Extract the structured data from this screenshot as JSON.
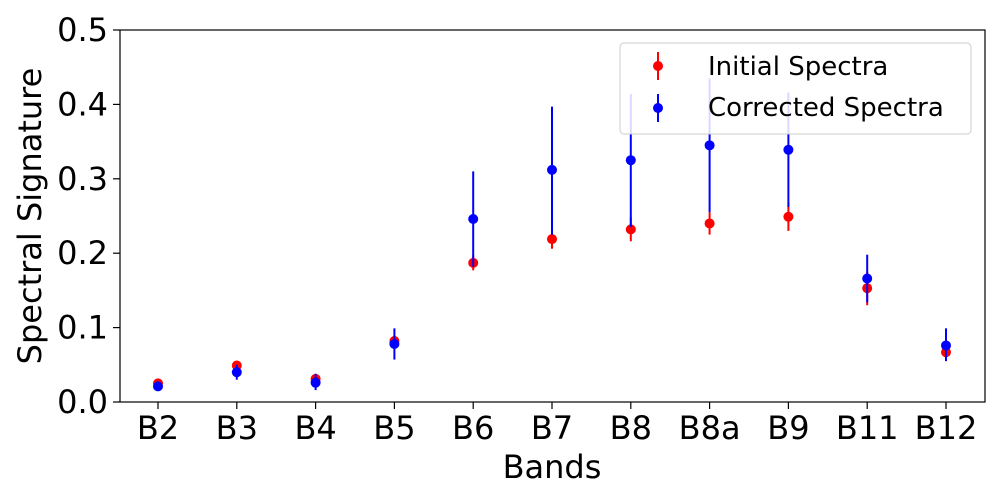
{
  "chart_data": {
    "type": "scatter",
    "title": "",
    "xlabel": "Bands",
    "ylabel": "Spectral Signature",
    "ylim": [
      0,
      0.5
    ],
    "yticks": [
      "0.0",
      "0.1",
      "0.2",
      "0.3",
      "0.4",
      "0.5"
    ],
    "categories": [
      "B2",
      "B3",
      "B4",
      "B5",
      "B6",
      "B7",
      "B8",
      "B8a",
      "B9",
      "B11",
      "B12"
    ],
    "grid": false,
    "legend_position": "top-right",
    "series": [
      {
        "name": "Initial Spectra",
        "color": "#ff0000",
        "values": [
          0.025,
          0.049,
          0.031,
          0.082,
          0.187,
          0.219,
          0.232,
          0.24,
          0.249,
          0.153,
          0.067
        ],
        "err_low": [
          0.022,
          0.045,
          0.026,
          0.078,
          0.177,
          0.206,
          0.216,
          0.225,
          0.23,
          0.13,
          0.055
        ],
        "err_high": [
          0.028,
          0.053,
          0.036,
          0.086,
          0.197,
          0.232,
          0.248,
          0.255,
          0.268,
          0.175,
          0.079
        ]
      },
      {
        "name": "Corrected Spectra",
        "color": "#0000ff",
        "values": [
          0.021,
          0.04,
          0.026,
          0.078,
          0.246,
          0.312,
          0.325,
          0.345,
          0.339,
          0.166,
          0.076
        ],
        "err_low": [
          0.016,
          0.03,
          0.016,
          0.057,
          0.182,
          0.225,
          0.235,
          0.255,
          0.262,
          0.134,
          0.055
        ],
        "err_high": [
          0.026,
          0.05,
          0.038,
          0.099,
          0.31,
          0.397,
          0.414,
          0.435,
          0.416,
          0.198,
          0.099
        ]
      }
    ]
  }
}
